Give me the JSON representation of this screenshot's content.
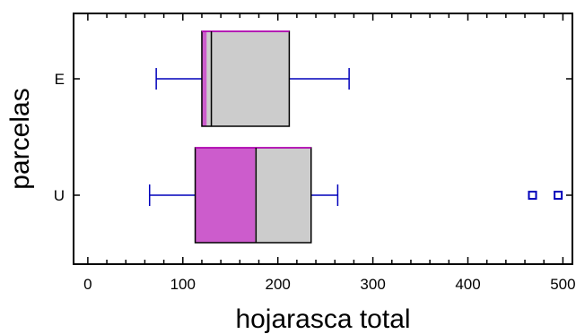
{
  "chart_data": {
    "type": "boxplot",
    "orientation": "horizontal",
    "xlabel": "hojarasca total",
    "ylabel": "parcelas",
    "xlim": [
      -15,
      510
    ],
    "xticks": [
      0,
      100,
      200,
      300,
      400,
      500
    ],
    "xtick_labels": [
      "0",
      "100",
      "200",
      "300",
      "400",
      "500"
    ],
    "categories": [
      "E",
      "U"
    ],
    "boxes": [
      {
        "label": "E",
        "whisker_low": 72,
        "q1": 120,
        "median": 130,
        "mean": 125,
        "q3": 212,
        "whisker_high": 275,
        "outliers": []
      },
      {
        "label": "U",
        "whisker_low": 65,
        "q1": 113,
        "median": 177,
        "mean": 176,
        "q3": 235,
        "whisker_high": 263,
        "outliers": [
          468,
          495
        ]
      }
    ],
    "colors": {
      "box_fill": "#cccccc",
      "box_edge": "#000000",
      "mean_accent": "#cc00cc",
      "whisker": "#0000bb",
      "outlier": "#0000bb",
      "frame": "#000000"
    }
  }
}
